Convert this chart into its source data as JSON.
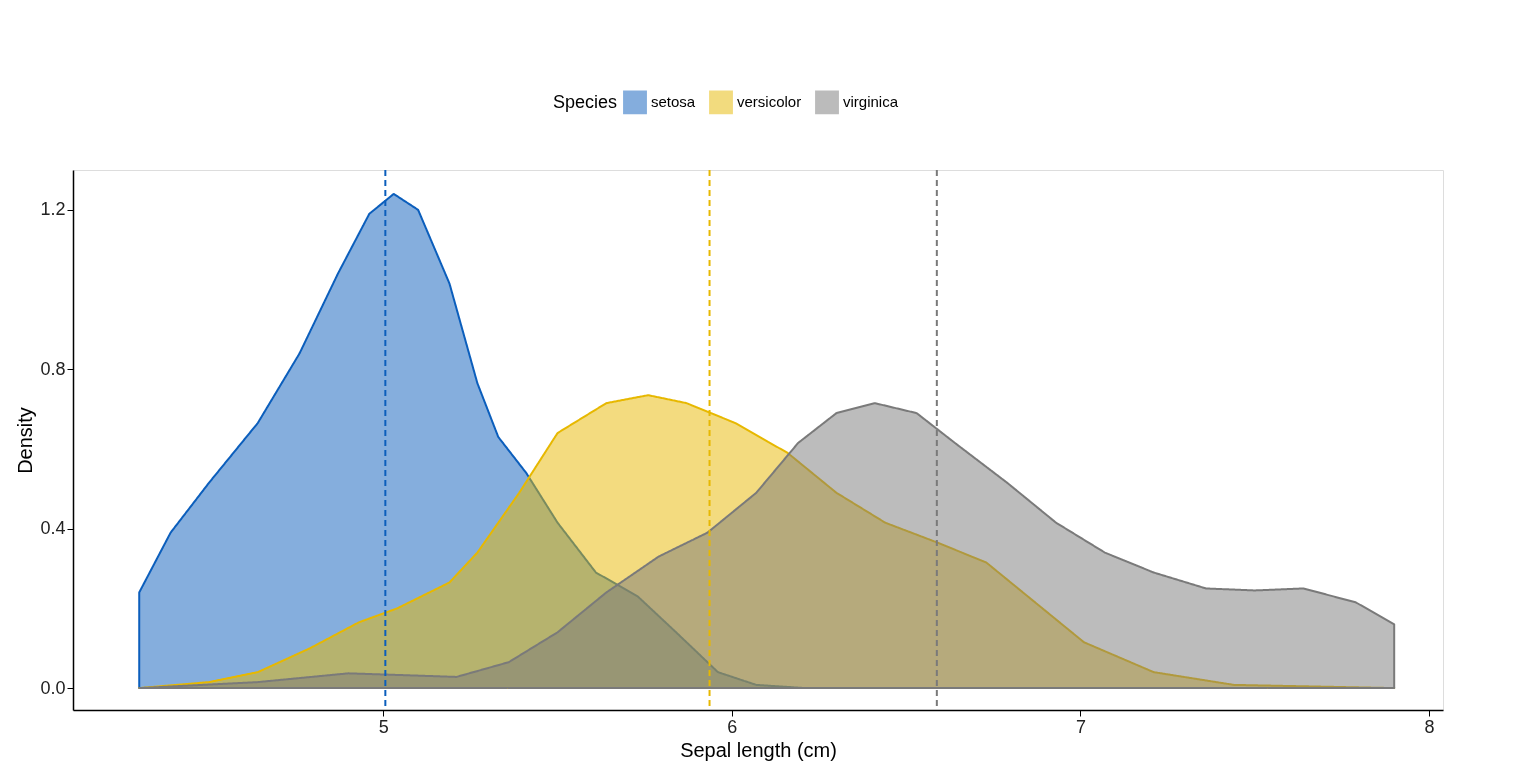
{
  "chart_data": {
    "type": "area",
    "xlabel": "Sepal length (cm)",
    "ylabel": "Density",
    "legend_title": "Species",
    "legend": "top",
    "xlim": [
      4.11,
      8.04
    ],
    "ylim": [
      -0.055,
      1.3
    ],
    "xticks": [
      5,
      6,
      7,
      8
    ],
    "yticks": [
      {
        "value": 0,
        "label": "0.0"
      },
      {
        "value": 0.4,
        "label": "0.4"
      },
      {
        "value": 0.8,
        "label": "0.8"
      },
      {
        "value": 1.2,
        "label": "1.2"
      }
    ],
    "grid": false,
    "line_style": "solid",
    "series": [
      {
        "name": "setosa",
        "color": "#0b5ebc",
        "x": [
          4.3,
          4.39,
          4.5,
          4.64,
          4.76,
          4.87,
          4.96,
          5.03,
          5.1,
          5.19,
          5.27,
          5.33,
          5.41,
          5.5,
          5.61,
          5.73,
          5.84,
          5.96,
          6.07,
          6.21,
          6.5,
          7.0,
          7.5,
          7.9
        ],
        "values": [
          0.24,
          0.39,
          0.515,
          0.665,
          0.84,
          1.04,
          1.19,
          1.24,
          1.2,
          1.015,
          0.765,
          0.63,
          0.54,
          0.415,
          0.29,
          0.23,
          0.14,
          0.04,
          0.008,
          0,
          0,
          0,
          0,
          0
        ]
      },
      {
        "name": "versicolor",
        "color": "#e7b800",
        "x": [
          4.3,
          4.5,
          4.64,
          4.79,
          4.93,
          5.04,
          5.19,
          5.27,
          5.39,
          5.5,
          5.64,
          5.76,
          5.87,
          6.01,
          6.16,
          6.3,
          6.44,
          6.59,
          6.73,
          6.87,
          7.01,
          7.21,
          7.44,
          7.9
        ],
        "values": [
          0,
          0.015,
          0.04,
          0.1,
          0.165,
          0.2,
          0.265,
          0.34,
          0.49,
          0.64,
          0.715,
          0.735,
          0.715,
          0.665,
          0.59,
          0.49,
          0.415,
          0.365,
          0.315,
          0.215,
          0.115,
          0.04,
          0.008,
          0
        ]
      },
      {
        "name": "virginica",
        "color": "#7a7a7a",
        "x": [
          4.3,
          4.64,
          4.9,
          5.04,
          5.21,
          5.36,
          5.5,
          5.64,
          5.79,
          5.93,
          6.07,
          6.19,
          6.3,
          6.41,
          6.53,
          6.64,
          6.79,
          6.93,
          7.07,
          7.21,
          7.36,
          7.5,
          7.64,
          7.79,
          7.9
        ],
        "values": [
          0,
          0.015,
          0.037,
          0.033,
          0.028,
          0.065,
          0.14,
          0.24,
          0.33,
          0.39,
          0.49,
          0.615,
          0.69,
          0.715,
          0.69,
          0.615,
          0.515,
          0.415,
          0.34,
          0.29,
          0.25,
          0.245,
          0.25,
          0.215,
          0.16
        ]
      }
    ],
    "ref_lines": [
      {
        "axis": "x",
        "value": 5.006,
        "color": "#0b5ebc",
        "line_style": "dashed"
      },
      {
        "axis": "x",
        "value": 5.936,
        "color": "#e7b800",
        "line_style": "dashed"
      },
      {
        "axis": "x",
        "value": 6.588,
        "color": "#7a7a7a",
        "line_style": "dashed"
      }
    ]
  }
}
